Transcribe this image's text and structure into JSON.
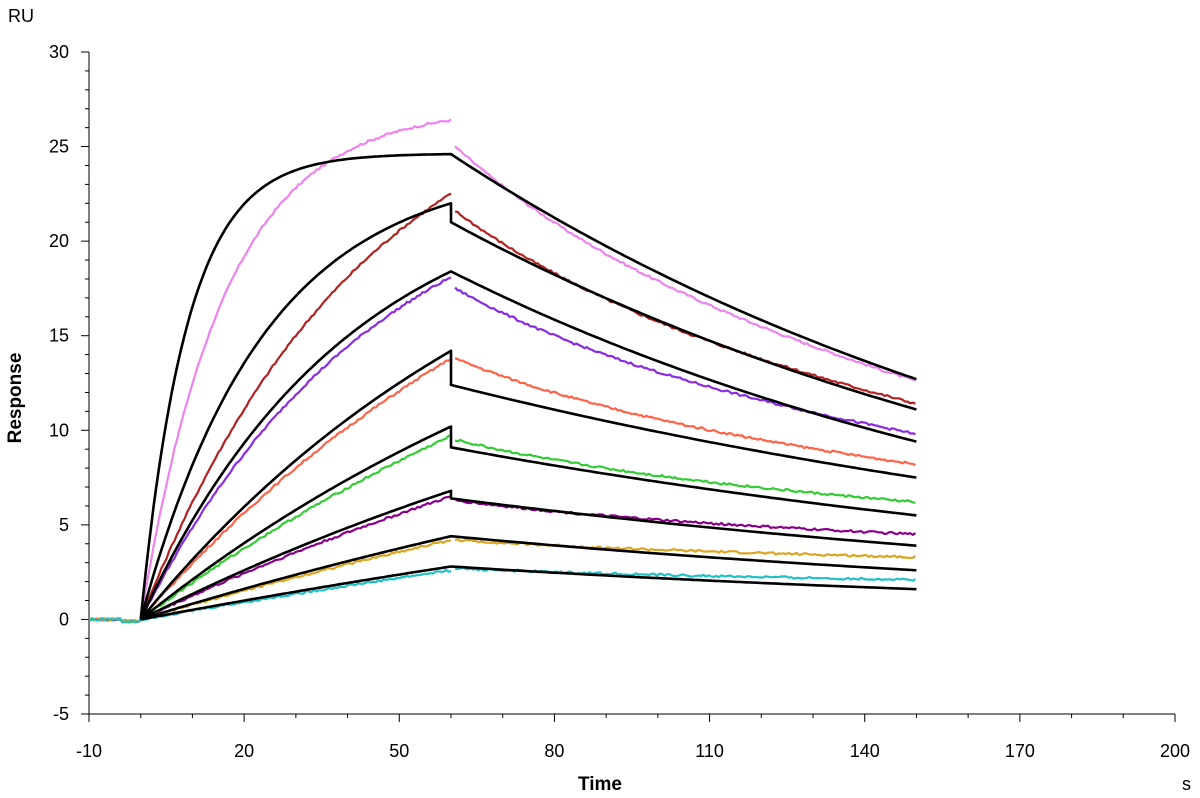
{
  "chart_data": {
    "type": "line",
    "title": "",
    "xlabel": "Time",
    "ylabel": "Response",
    "x_unit": "s",
    "y_unit": "RU",
    "xlim": [
      -10,
      200
    ],
    "ylim": [
      -5,
      30
    ],
    "x_ticks": [
      -10,
      20,
      50,
      80,
      110,
      140,
      170,
      200
    ],
    "y_ticks": [
      -5,
      0,
      5,
      10,
      15,
      20,
      25,
      30
    ],
    "x_tick_labels": [
      "-10",
      "20",
      "50",
      "80",
      "110",
      "140",
      "170",
      "200"
    ],
    "y_tick_labels": [
      "-5",
      "0",
      "5",
      "10",
      "15",
      "20",
      "25",
      "30"
    ],
    "grid": false,
    "legend": "none",
    "injection_start": 0,
    "injection_end": 60,
    "run_end": 150,
    "series": [
      {
        "color": "#ee82ee",
        "fit_assoc_end": 24.6,
        "fit_assoc_tau": 9,
        "fit_dissoc_start": 24.6,
        "fit_dissoc_end": 12.7,
        "meas_assoc_end": 26.4,
        "meas_dissoc_start": 25.0,
        "meas_dissoc_end": 12.6
      },
      {
        "color": "#b22222",
        "fit_assoc_end": 22.0,
        "fit_assoc_tau": 24,
        "fit_dissoc_start": 21.0,
        "fit_dissoc_end": 11.1,
        "meas_assoc_end": 22.5,
        "meas_dissoc_start": 21.6,
        "meas_dissoc_end": 11.4
      },
      {
        "color": "#8a2be2",
        "fit_assoc_end": 18.4,
        "fit_assoc_tau": 40,
        "fit_dissoc_start": 18.4,
        "fit_dissoc_end": 9.4,
        "meas_assoc_end": 18.1,
        "meas_dissoc_start": 17.5,
        "meas_dissoc_end": 9.8
      },
      {
        "color": "#ff6347",
        "fit_assoc_end": 14.2,
        "fit_assoc_tau": 80,
        "fit_dissoc_start": 12.4,
        "fit_dissoc_end": 7.5,
        "meas_assoc_end": 13.8,
        "meas_dissoc_start": 13.8,
        "meas_dissoc_end": 8.2
      },
      {
        "color": "#32cd32",
        "fit_assoc_end": 10.2,
        "fit_assoc_tau": 110,
        "fit_dissoc_start": 9.1,
        "fit_dissoc_end": 5.5,
        "meas_assoc_end": 9.7,
        "meas_dissoc_start": 9.5,
        "meas_dissoc_end": 6.2
      },
      {
        "color": "#8b008b",
        "fit_assoc_end": 6.8,
        "fit_assoc_tau": 140,
        "fit_dissoc_start": 6.4,
        "fit_dissoc_end": 3.9,
        "meas_assoc_end": 6.5,
        "meas_dissoc_start": 6.3,
        "meas_dissoc_end": 4.5
      },
      {
        "color": "#daa520",
        "fit_assoc_end": 4.4,
        "fit_assoc_tau": 200,
        "fit_dissoc_start": 4.4,
        "fit_dissoc_end": 2.6,
        "meas_assoc_end": 4.2,
        "meas_dissoc_start": 4.2,
        "meas_dissoc_end": 3.3
      },
      {
        "color": "#20c0c8",
        "fit_assoc_end": 2.8,
        "fit_assoc_tau": 300,
        "fit_dissoc_start": 2.8,
        "fit_dissoc_end": 1.6,
        "meas_assoc_end": 2.6,
        "meas_dissoc_start": 2.7,
        "meas_dissoc_end": 2.1
      }
    ],
    "fit_color": "#000000"
  }
}
